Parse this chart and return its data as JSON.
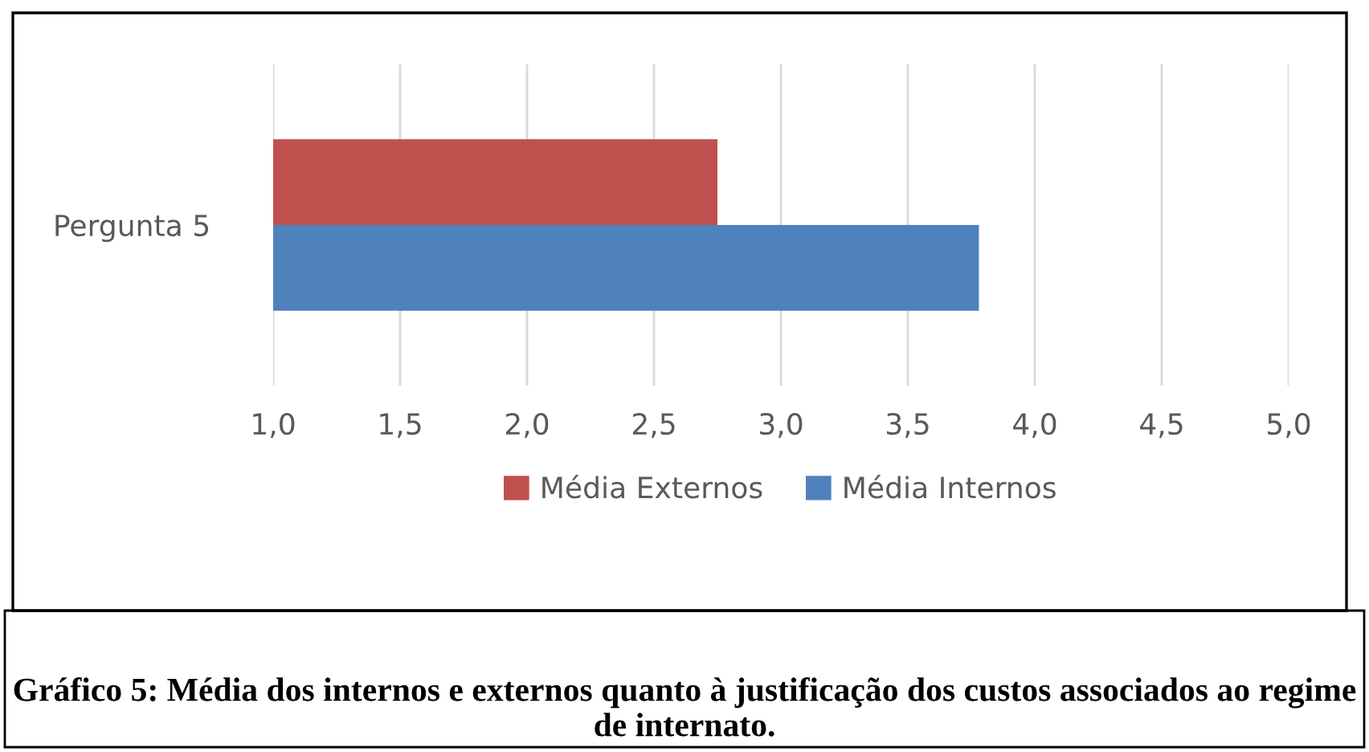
{
  "chart_data": {
    "type": "bar",
    "orientation": "horizontal",
    "categories": [
      "Pergunta 5"
    ],
    "series": [
      {
        "name": "Média Externos",
        "color": "#c0504d",
        "values": [
          2.75
        ]
      },
      {
        "name": "Média Internos",
        "color": "#4f81bd",
        "values": [
          3.78
        ]
      }
    ],
    "xlim": [
      1,
      5
    ],
    "xticks": [
      {
        "value": 1,
        "label": "1,0"
      },
      {
        "value": 1.5,
        "label": "1,5"
      },
      {
        "value": 2,
        "label": "2,0"
      },
      {
        "value": 2.5,
        "label": "2,5"
      },
      {
        "value": 3,
        "label": "3,0"
      },
      {
        "value": 3.5,
        "label": "3,5"
      },
      {
        "value": 4,
        "label": "4,0"
      },
      {
        "value": 4.5,
        "label": "4,5"
      },
      {
        "value": 5,
        "label": "5,0"
      }
    ],
    "grid": "x",
    "legend": "bottom",
    "annotations": [
      "Gráfico 5: Média dos internos e externos quanto à justificação dos custos associados ao regime de internato."
    ]
  }
}
